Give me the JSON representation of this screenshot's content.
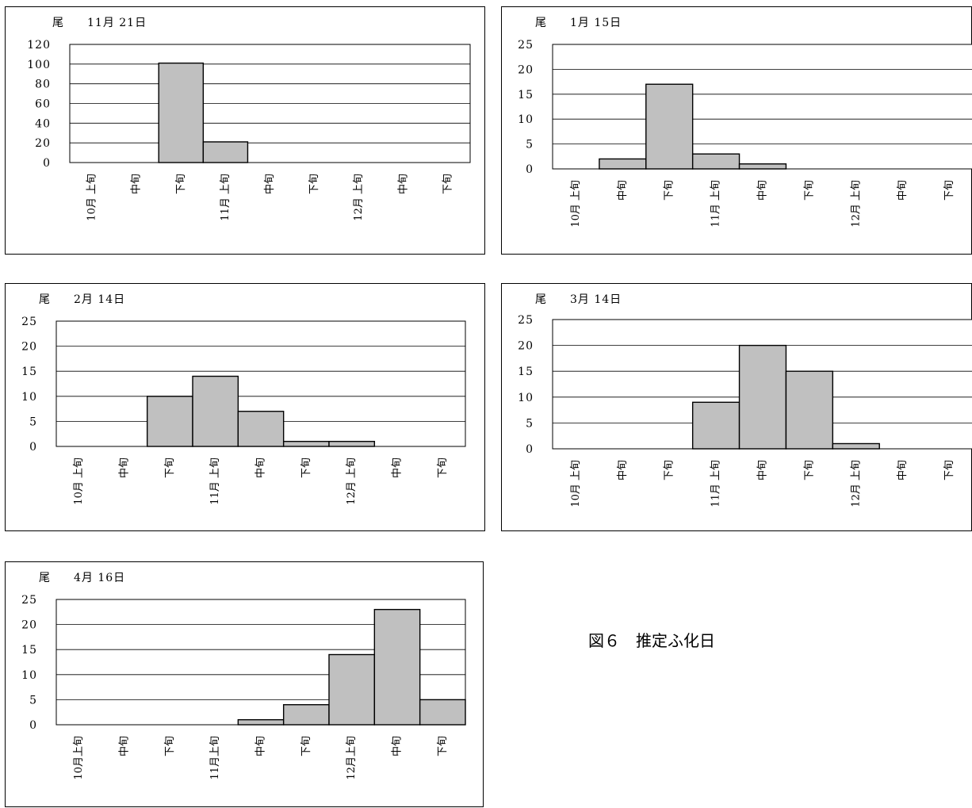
{
  "figure_caption": "図６　推定ふ化日",
  "chart_data": [
    {
      "type": "bar",
      "unit": "尾",
      "title": "11月 21日",
      "categories": [
        "10月 上旬",
        "中旬",
        "下旬",
        "11月 上旬",
        "中旬",
        "下旬",
        "12月 上旬",
        "中旬",
        "下旬"
      ],
      "values": [
        0,
        0,
        101,
        21,
        0,
        0,
        0,
        0,
        0
      ],
      "ylim": [
        0,
        120
      ],
      "yticks": [
        0,
        20,
        40,
        60,
        80,
        100,
        120
      ],
      "grid": true
    },
    {
      "type": "bar",
      "unit": "尾",
      "title": "1月 15日",
      "categories": [
        "10月 上旬",
        "中旬",
        "下旬",
        "11月 上旬",
        "中旬",
        "下旬",
        "12月 上旬",
        "中旬",
        "下旬"
      ],
      "values": [
        0,
        2,
        17,
        3,
        1,
        0,
        0,
        0,
        0
      ],
      "ylim": [
        0,
        25
      ],
      "yticks": [
        0,
        5,
        10,
        15,
        20,
        25
      ],
      "grid": true
    },
    {
      "type": "bar",
      "unit": "尾",
      "title": "2月 14日",
      "categories": [
        "10月 上旬",
        "中旬",
        "下旬",
        "11月 上旬",
        "中旬",
        "下旬",
        "12月 上旬",
        "中旬",
        "下旬"
      ],
      "values": [
        0,
        0,
        10,
        14,
        7,
        1,
        1,
        0,
        0
      ],
      "ylim": [
        0,
        25
      ],
      "yticks": [
        0,
        5,
        10,
        15,
        20,
        25
      ],
      "grid": true
    },
    {
      "type": "bar",
      "unit": "尾",
      "title": "3月 14日",
      "categories": [
        "10月 上旬",
        "中旬",
        "下旬",
        "11月 上旬",
        "中旬",
        "下旬",
        "12月 上旬",
        "中旬",
        "下旬"
      ],
      "values": [
        0,
        0,
        0,
        9,
        20,
        15,
        1,
        0,
        0
      ],
      "ylim": [
        0,
        25
      ],
      "yticks": [
        0,
        5,
        10,
        15,
        20,
        25
      ],
      "grid": true
    },
    {
      "type": "bar",
      "unit": "尾",
      "title": "4月 16日",
      "categories": [
        "10月上旬",
        "中旬",
        "下旬",
        "11月上旬",
        "中旬",
        "下旬",
        "12月上旬",
        "中旬",
        "下旬"
      ],
      "values": [
        0,
        0,
        0,
        0,
        1,
        4,
        14,
        23,
        5
      ],
      "ylim": [
        0,
        25
      ],
      "yticks": [
        0,
        5,
        10,
        15,
        20,
        25
      ],
      "grid": true
    }
  ]
}
